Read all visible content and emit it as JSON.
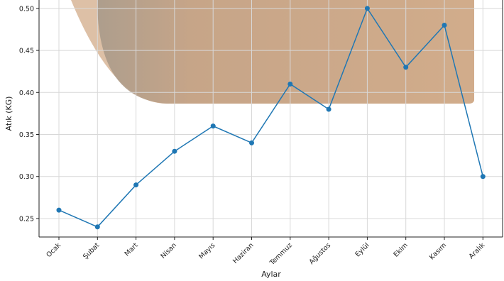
{
  "chart_data": {
    "type": "line",
    "title": "",
    "xlabel": "Aylar",
    "ylabel": "Atık (KG)",
    "categories": [
      "Ocak",
      "Şubat",
      "Mart",
      "Nisan",
      "Mayıs",
      "Haziran",
      "Temmuz",
      "Ağustos",
      "Eylül",
      "Ekim",
      "Kasım",
      "Aralık"
    ],
    "series": [
      {
        "values": [
          0.26,
          0.24,
          0.29,
          0.33,
          0.36,
          0.34,
          0.41,
          0.38,
          0.5,
          0.43,
          0.48,
          0.3
        ]
      }
    ],
    "yticks": [
      "0.25",
      "0.30",
      "0.35",
      "0.40",
      "0.45",
      "0.50"
    ],
    "ylim": [
      0.228,
      0.51
    ],
    "grid": true,
    "legend": "none",
    "colors": {
      "line": "#1f77b4",
      "grid": "#d8d8d8",
      "background_image": "#c8a07e"
    }
  }
}
